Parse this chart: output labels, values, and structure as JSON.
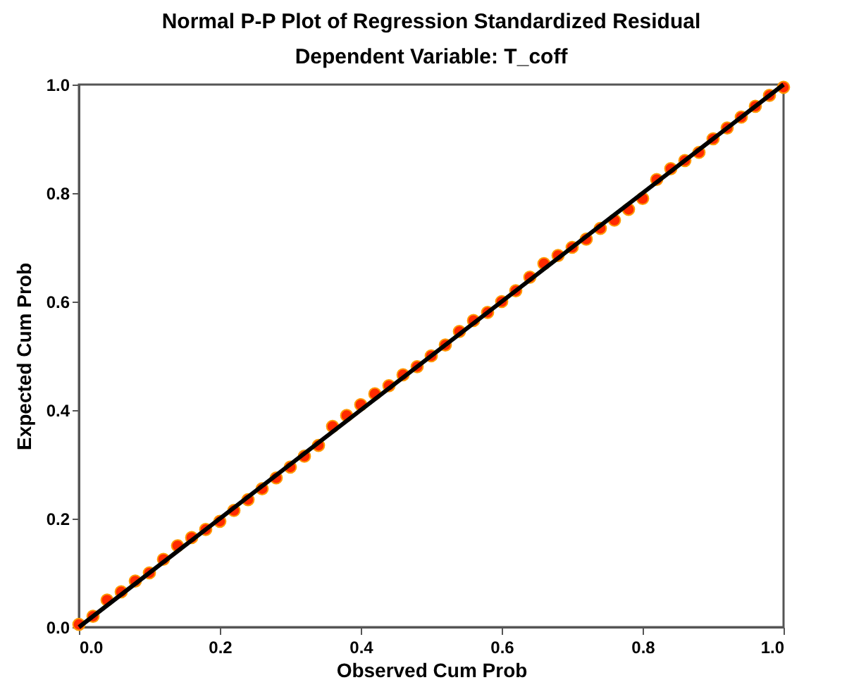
{
  "chart_data": {
    "type": "scatter",
    "title": "Normal P-P Plot of Regression Standardized Residual",
    "subtitle": "Dependent Variable: T_coff",
    "xlabel": "Observed Cum Prob",
    "ylabel": "Expected Cum Prob",
    "xlim": [
      0,
      1
    ],
    "ylim": [
      0,
      1
    ],
    "xticks": [
      {
        "value": 0,
        "label": "0.0"
      },
      {
        "value": 0.2,
        "label": "0.2"
      },
      {
        "value": 0.4,
        "label": "0.4"
      },
      {
        "value": 0.6,
        "label": "0.6"
      },
      {
        "value": 0.8,
        "label": "0.8"
      },
      {
        "value": 1,
        "label": "1.0"
      }
    ],
    "yticks": [
      {
        "value": 0,
        "label": "0.0"
      },
      {
        "value": 0.2,
        "label": "0.2"
      },
      {
        "value": 0.4,
        "label": "0.4"
      },
      {
        "value": 0.6,
        "label": "0.6"
      },
      {
        "value": 0.8,
        "label": "0.8"
      },
      {
        "value": 1,
        "label": "1.0"
      }
    ],
    "grid": false,
    "series": [
      {
        "marker": "circle",
        "color": "#ff2a00",
        "x": [
          0,
          0.02,
          0.04,
          0.06,
          0.08,
          0.1,
          0.12,
          0.14,
          0.16,
          0.18,
          0.2,
          0.22,
          0.24,
          0.26,
          0.28,
          0.3,
          0.32,
          0.34,
          0.36,
          0.38,
          0.4,
          0.42,
          0.44,
          0.46,
          0.48,
          0.5,
          0.52,
          0.54,
          0.56,
          0.58,
          0.6,
          0.62,
          0.64,
          0.66,
          0.68,
          0.7,
          0.72,
          0.74,
          0.76,
          0.78,
          0.8,
          0.82,
          0.84,
          0.86,
          0.88,
          0.9,
          0.92,
          0.94,
          0.96,
          0.98,
          1
        ],
        "values": [
          0.005,
          0.02,
          0.05,
          0.065,
          0.085,
          0.1,
          0.125,
          0.15,
          0.165,
          0.18,
          0.195,
          0.215,
          0.235,
          0.255,
          0.275,
          0.295,
          0.315,
          0.335,
          0.37,
          0.39,
          0.41,
          0.43,
          0.445,
          0.465,
          0.48,
          0.5,
          0.52,
          0.545,
          0.565,
          0.58,
          0.6,
          0.62,
          0.645,
          0.67,
          0.685,
          0.7,
          0.715,
          0.735,
          0.75,
          0.77,
          0.79,
          0.825,
          0.845,
          0.86,
          0.875,
          0.9,
          0.92,
          0.94,
          0.96,
          0.98,
          0.995
        ]
      },
      {
        "type": "line",
        "color": "#000000",
        "x": [
          0,
          1
        ],
        "values": [
          0,
          1
        ]
      }
    ]
  }
}
